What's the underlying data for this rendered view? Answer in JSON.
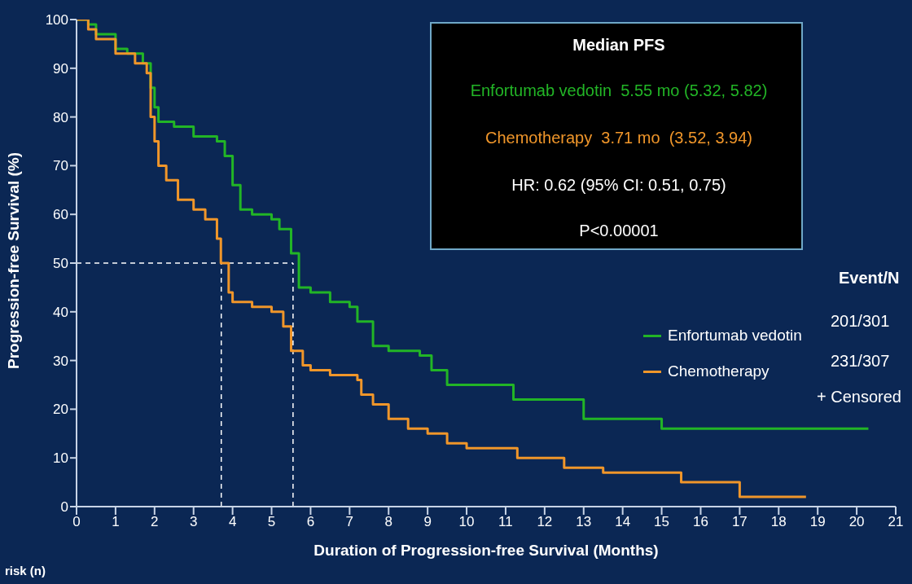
{
  "chart_data": {
    "type": "step",
    "xlabel": "Duration of Progression-free Survival (Months)",
    "ylabel": "Progression-free Survival (%)",
    "xlim": [
      0,
      21
    ],
    "xticks": [
      0,
      1,
      2,
      3,
      4,
      5,
      6,
      7,
      8,
      9,
      10,
      11,
      12,
      13,
      14,
      15,
      16,
      17,
      18,
      19,
      20,
      21
    ],
    "ylim": [
      0,
      100
    ],
    "yticks": [
      0,
      10,
      20,
      30,
      40,
      50,
      60,
      70,
      80,
      90,
      100
    ],
    "grid": false,
    "legend": "right",
    "marker": "none",
    "line_style": "solid",
    "series": [
      {
        "name": "Enfortumab vedotin",
        "color": "#22b526",
        "x": [
          0,
          0.3,
          0.5,
          1.0,
          1.3,
          1.7,
          1.9,
          2.0,
          2.1,
          2.5,
          3.0,
          3.6,
          3.8,
          4.0,
          4.2,
          4.5,
          5.0,
          5.2,
          5.5,
          5.7,
          6.0,
          6.5,
          7.0,
          7.2,
          7.6,
          8.0,
          8.8,
          9.1,
          9.5,
          11.0,
          11.2,
          12.7,
          13.0,
          14.9,
          15.0,
          20.3
        ],
        "values": [
          100,
          99,
          97,
          94,
          93,
          91,
          86,
          82,
          79,
          78,
          76,
          75,
          72,
          66,
          61,
          60,
          59,
          57,
          52,
          45,
          44,
          42,
          41,
          38,
          33,
          32,
          31,
          28,
          25,
          25,
          22,
          22,
          18,
          18,
          16,
          16
        ]
      },
      {
        "name": "Chemotherapy",
        "color": "#f0962a",
        "x": [
          0,
          0.3,
          0.5,
          1.0,
          1.5,
          1.8,
          1.9,
          2.0,
          2.1,
          2.3,
          2.6,
          3.0,
          3.3,
          3.6,
          3.7,
          3.9,
          4.0,
          4.5,
          5.0,
          5.3,
          5.5,
          5.8,
          6.0,
          6.5,
          7.2,
          7.3,
          7.6,
          8.0,
          8.5,
          9.0,
          9.5,
          10.0,
          11.3,
          12.5,
          13.5,
          15.5,
          17.0,
          18.7
        ],
        "values": [
          100,
          98,
          96,
          93,
          91,
          89,
          80,
          75,
          70,
          67,
          63,
          61,
          59,
          55,
          50,
          44,
          42,
          41,
          40,
          37,
          32,
          29,
          28,
          27,
          26,
          23,
          21,
          18,
          16,
          15,
          13,
          12,
          10,
          8,
          7,
          5,
          2,
          2
        ]
      }
    ],
    "ref_lines": [
      {
        "axis": "y",
        "value": 50,
        "color": "#ffffff",
        "line_style": "dashed"
      },
      {
        "axis": "x",
        "value": 3.71,
        "color": "#ffffff",
        "line_style": "dashed"
      },
      {
        "axis": "x",
        "value": 5.55,
        "color": "#ffffff",
        "line_style": "dashed"
      }
    ],
    "annotations": [
      "Median PFS",
      "Enfortumab vedotin  5.55 mo (5.32, 5.82)",
      "Chemotherapy  3.71 mo  (3.52, 3.94)",
      "HR: 0.62 (95% CI: 0.51, 0.75)",
      "P<0.00001",
      "Event/N",
      "201/301",
      "231/307",
      "+ Censored",
      "risk (n)"
    ]
  }
}
